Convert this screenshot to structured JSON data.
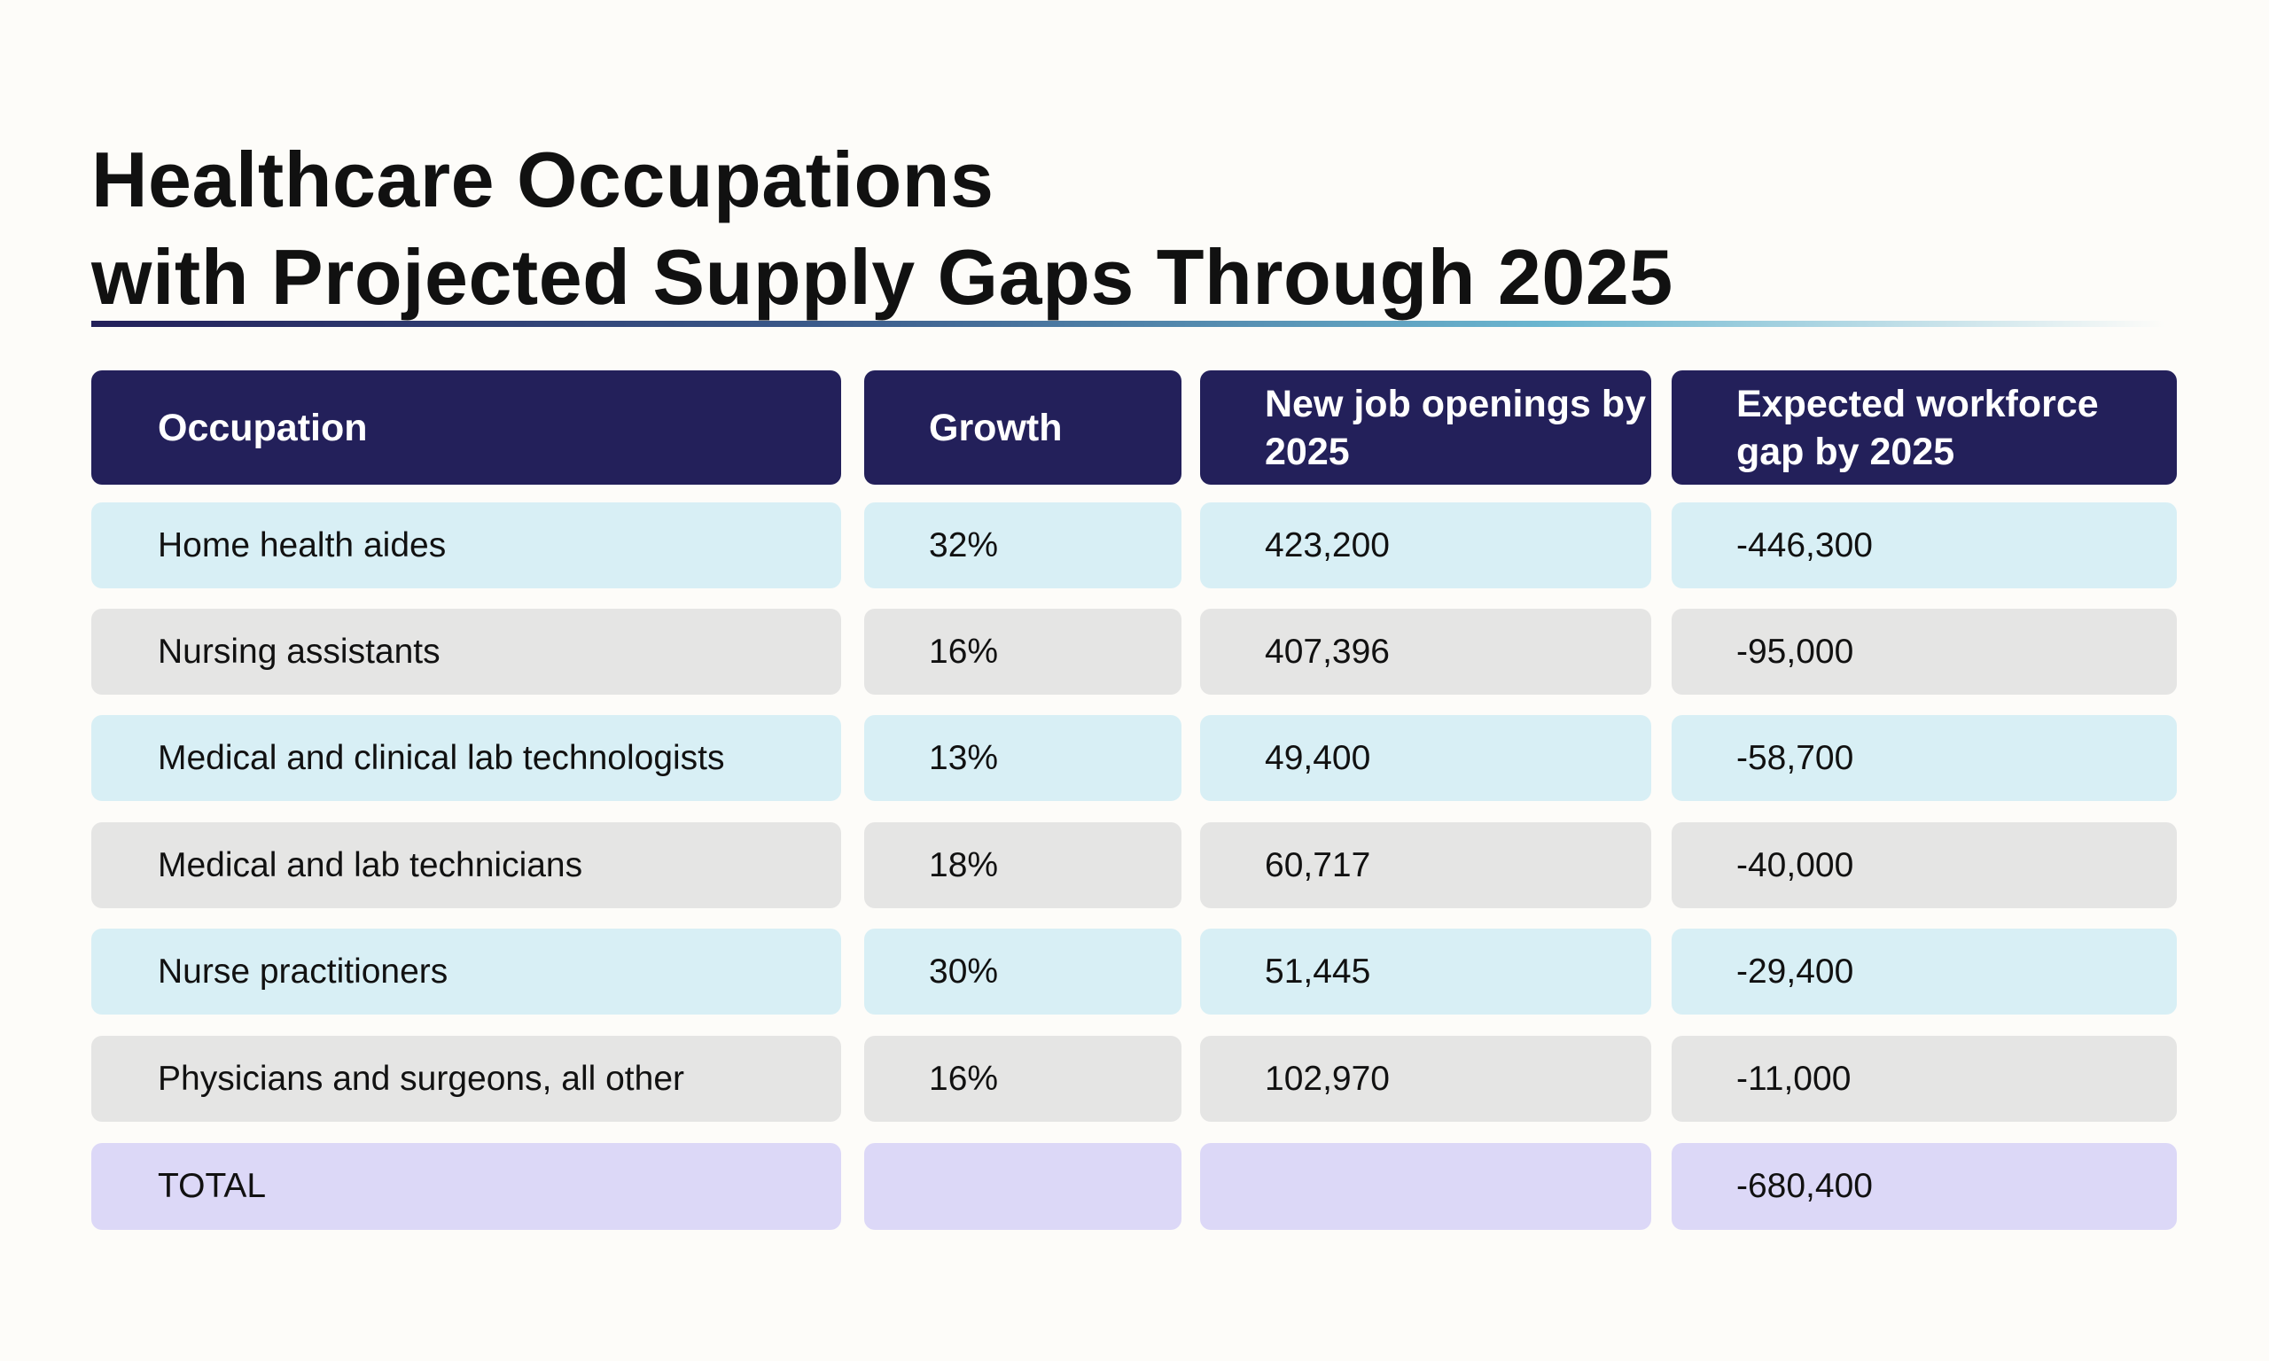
{
  "title_line1": "Healthcare Occupations",
  "title_line2": "with Projected Supply Gaps Through 2025",
  "headers": [
    "Occupation",
    "Growth",
    "New job openings by 2025",
    "Expected workforce gap by 2025"
  ],
  "rows": [
    [
      "Home health aides",
      "32%",
      "423,200",
      "-446,300"
    ],
    [
      "Nursing assistants",
      "16%",
      "407,396",
      "-95,000"
    ],
    [
      "Medical and clinical lab technologists",
      "13%",
      "49,400",
      "-58,700"
    ],
    [
      "Medical and lab technicians",
      "18%",
      "60,717",
      "-40,000"
    ],
    [
      "Nurse practitioners",
      "30%",
      "51,445",
      "-29,400"
    ],
    [
      "Physicians and surgeons, all other",
      "16%",
      "102,970",
      "-11,000"
    ]
  ],
  "total": [
    "TOTAL",
    "",
    "",
    "-680,400"
  ],
  "colors": {
    "header": "#23205a",
    "row_odd": "#d8eff5",
    "row_even": "#e5e5e4",
    "total": "#dcd8f7"
  }
}
